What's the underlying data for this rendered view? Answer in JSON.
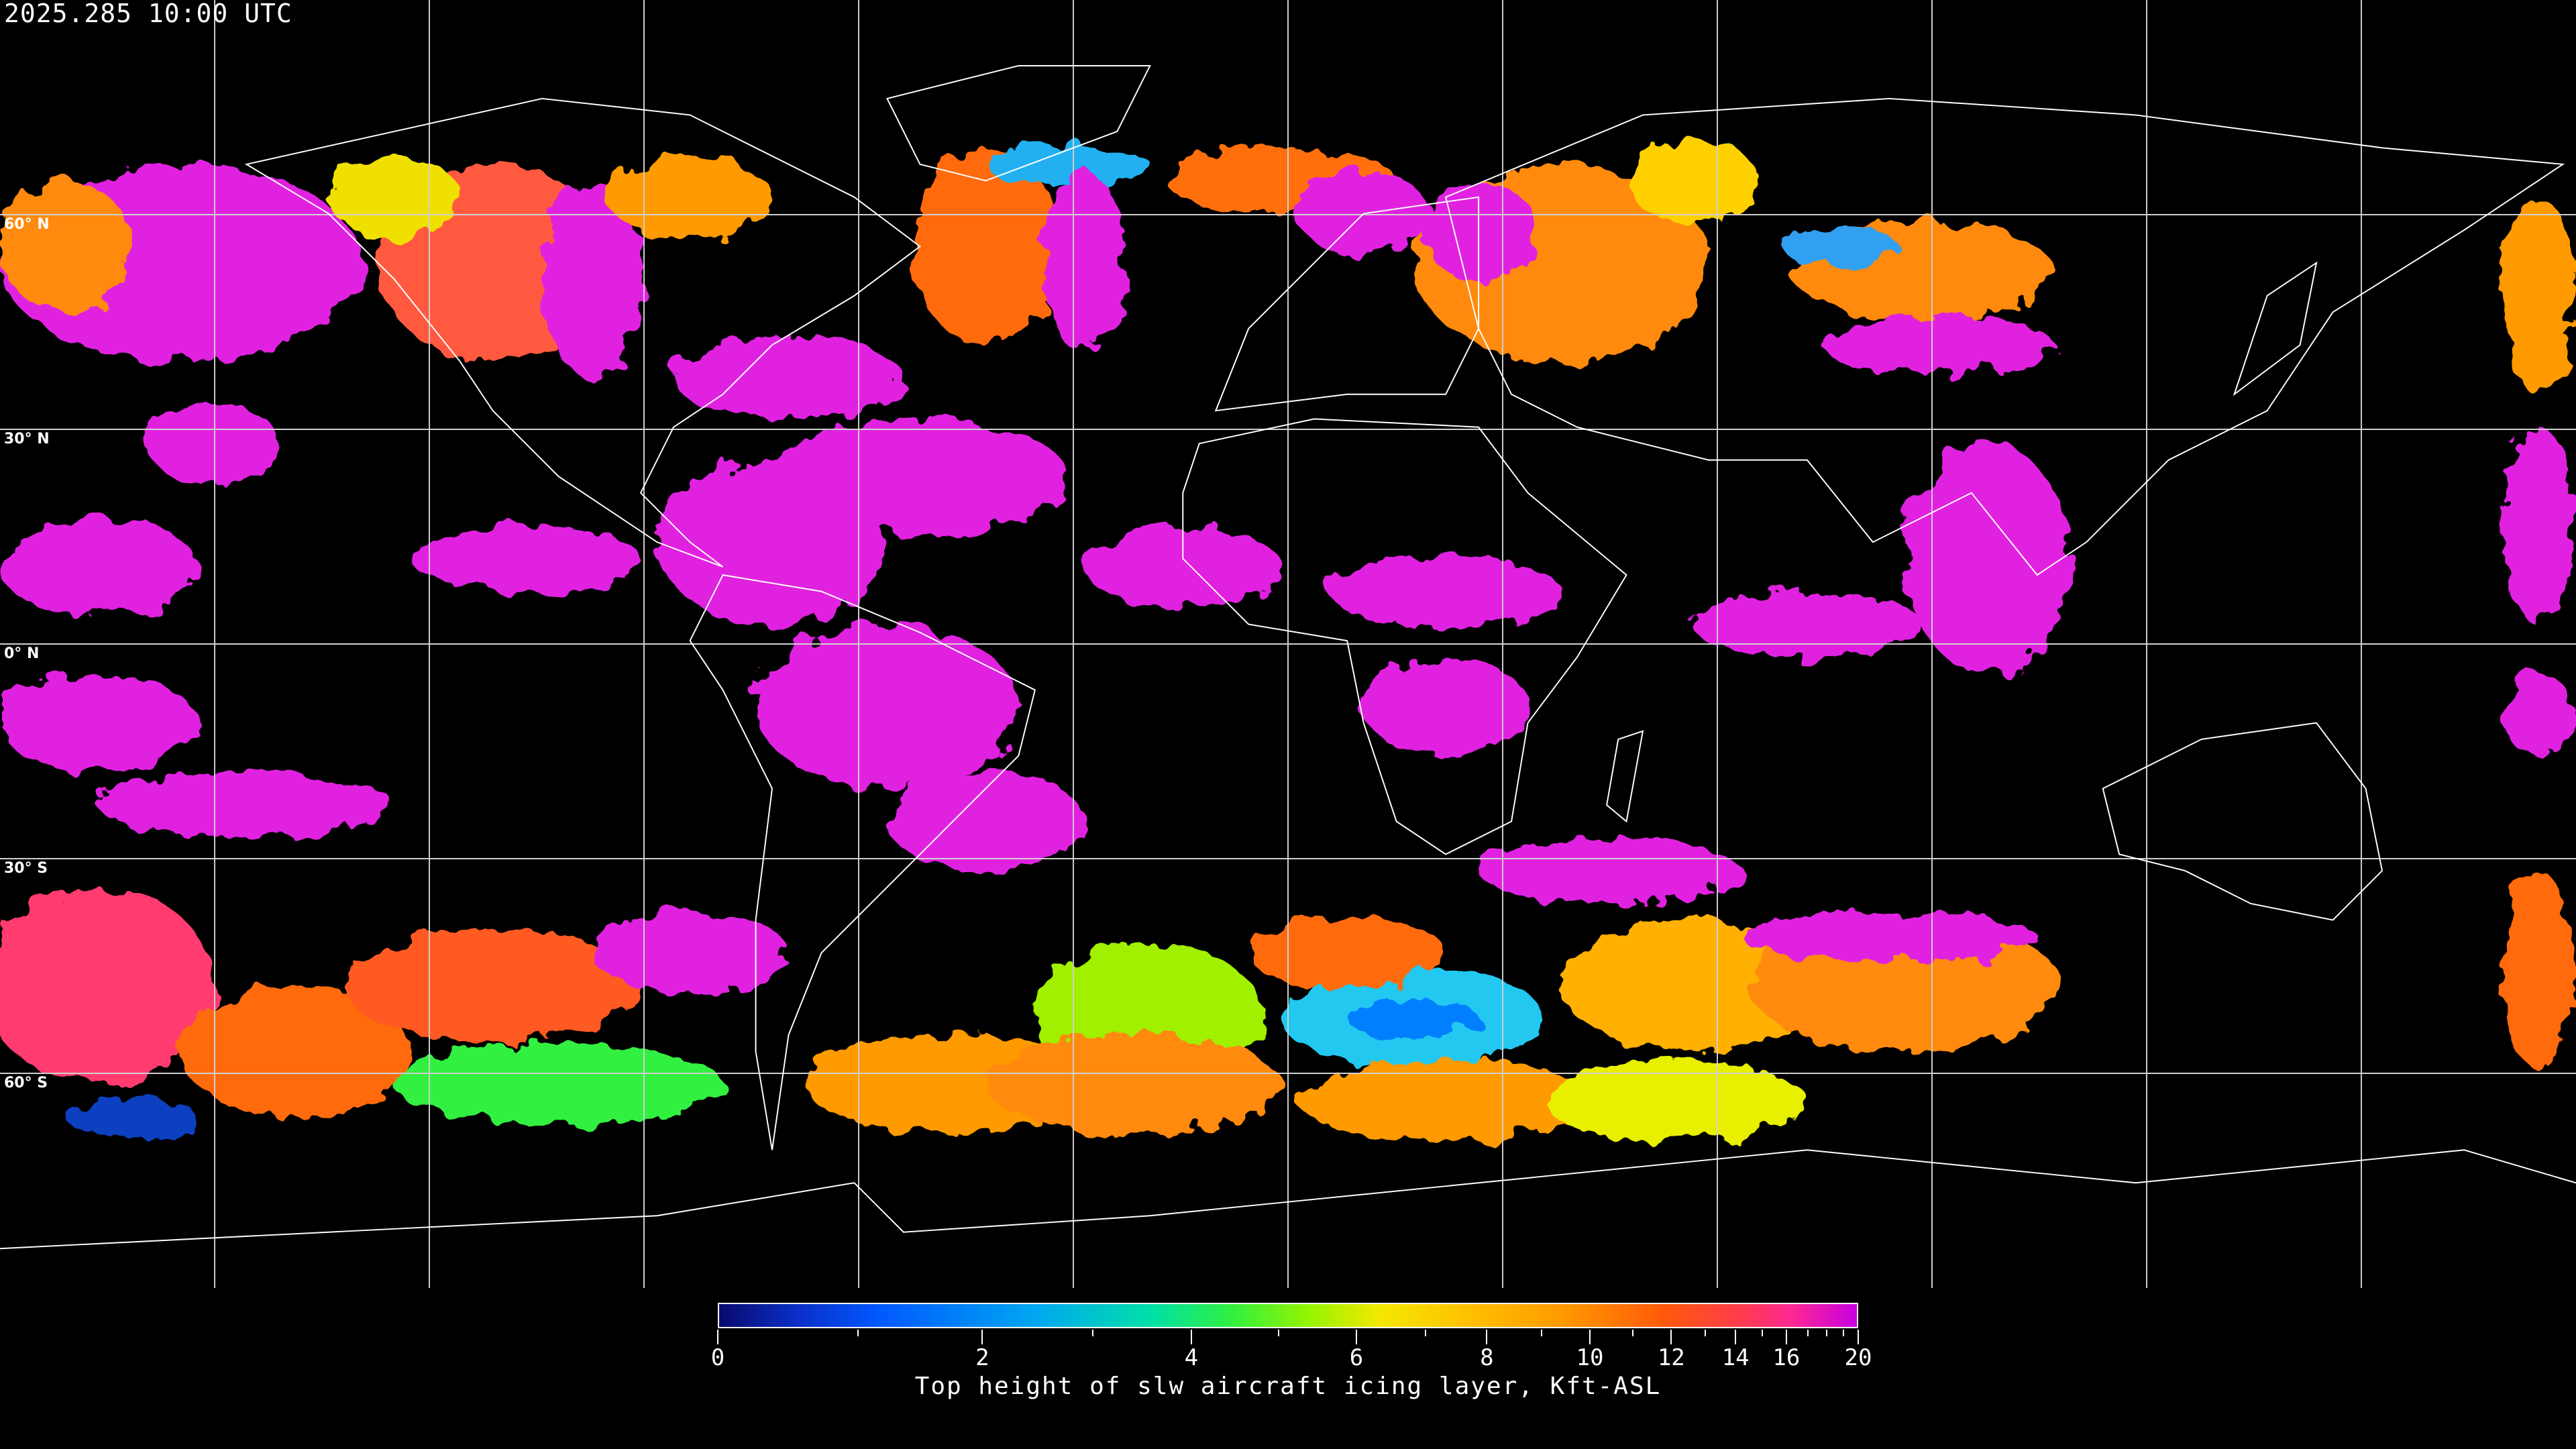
{
  "header": {
    "timestamp": "2025.285 10:00 UTC"
  },
  "map": {
    "projection": "equirectangular",
    "lon_range": [
      -180,
      180
    ],
    "lat_range": [
      -90,
      90
    ],
    "graticule_step_deg": 30,
    "lat_labels": [
      "60° N",
      "30° N",
      "0° N",
      "30° S",
      "60° S"
    ],
    "background_color": "#000000",
    "coastline_color": "#ffffff",
    "gridline_color": "#d0d0d0"
  },
  "colorbar": {
    "title": "Top height of slw aircraft icing layer, Kft-ASL",
    "range": [
      0,
      20
    ],
    "scale": "nonlinear (compressed at high values)",
    "major_ticks": [
      {
        "value": 0,
        "label": "0"
      },
      {
        "value": 2,
        "label": "2"
      },
      {
        "value": 4,
        "label": "4"
      },
      {
        "value": 6,
        "label": "6"
      },
      {
        "value": 8,
        "label": "8"
      },
      {
        "value": 10,
        "label": "10"
      },
      {
        "value": 12,
        "label": "12"
      },
      {
        "value": 14,
        "label": "14"
      },
      {
        "value": 16,
        "label": "16"
      },
      {
        "value": 20,
        "label": "20"
      }
    ],
    "minor_ticks": [
      1,
      3,
      5,
      7,
      9,
      11,
      13,
      15,
      17,
      18,
      19
    ],
    "colormap": [
      "#0a0a6e",
      "#0058ff",
      "#00a8f0",
      "#00e0a8",
      "#30f040",
      "#98f400",
      "#f4e800",
      "#ffc000",
      "#ff9a00",
      "#ff5a0a",
      "#ff3a50",
      "#ff2a90",
      "#c800e0"
    ]
  }
}
